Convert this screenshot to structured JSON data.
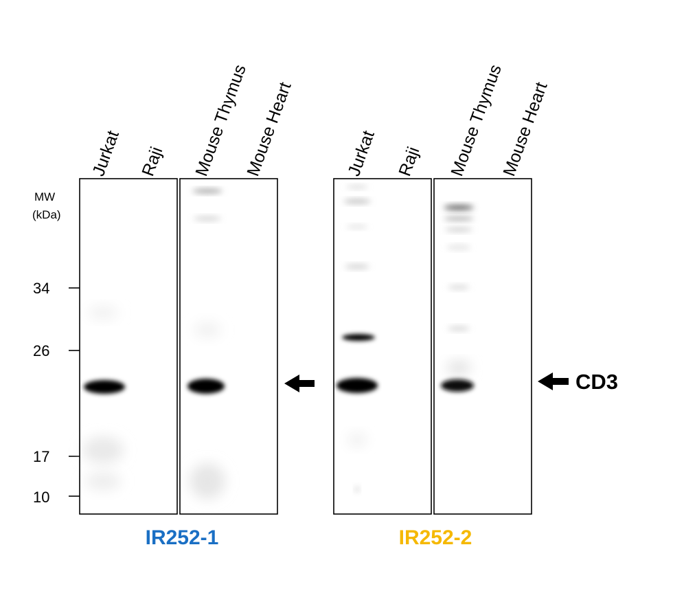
{
  "mw_label": [
    "MW",
    "(kDa)"
  ],
  "mw_markers": [
    "34",
    "26",
    "17",
    "10"
  ],
  "lanes": [
    "Jurkat",
    "Raji",
    "Mouse Thymus",
    "Mouse Heart"
  ],
  "blots": [
    {
      "antibody": "IR252-1",
      "color": "#1a6fc4"
    },
    {
      "antibody": "IR252-2",
      "color": "#f5b800"
    }
  ],
  "target": "CD3"
}
